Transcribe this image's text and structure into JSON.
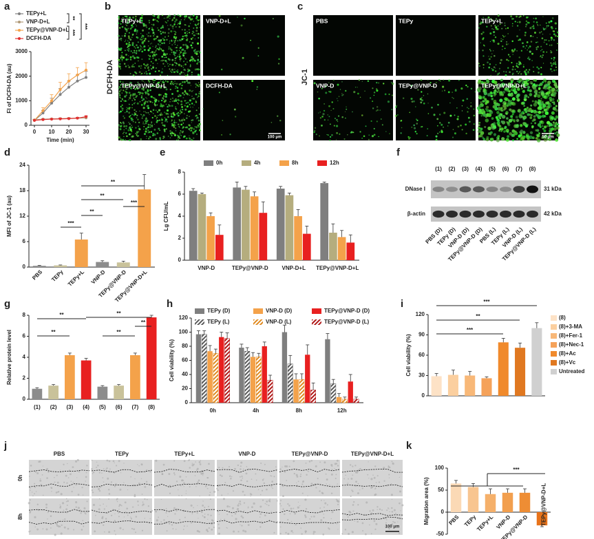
{
  "chart_data": [
    {
      "panel": "a",
      "type": "line",
      "xlabel": "Time (min)",
      "ylabel": "FI of DCFH-DA (au)",
      "x": [
        0,
        5,
        10,
        15,
        20,
        25,
        30
      ],
      "xlim": [
        -2,
        32
      ],
      "xticks": [
        0,
        10,
        20,
        30
      ],
      "ylim": [
        0,
        3000
      ],
      "yticks": [
        0,
        1000,
        2000,
        3000
      ],
      "legend": "top-left",
      "series": [
        {
          "name": "TEPy+L",
          "color": "#7f7f7f",
          "values": [
            200,
            500,
            900,
            1250,
            1550,
            1800,
            1950
          ],
          "errors": [
            30,
            100,
            200,
            250,
            250,
            250,
            250
          ]
        },
        {
          "name": "VNP-D+L",
          "color": "#b09a78",
          "values": [
            220,
            250,
            260,
            270,
            280,
            290,
            300
          ],
          "errors": [
            20,
            20,
            20,
            30,
            30,
            30,
            40
          ]
        },
        {
          "name": "TEPy@VNP-D+L",
          "color": "#f4a24a",
          "values": [
            200,
            600,
            1000,
            1450,
            1800,
            2050,
            2250
          ],
          "errors": [
            30,
            120,
            250,
            300,
            300,
            300,
            300
          ]
        },
        {
          "name": "DCFH-DA",
          "color": "#e03030",
          "values": [
            200,
            230,
            250,
            260,
            270,
            290,
            350
          ],
          "errors": [
            20,
            20,
            20,
            30,
            30,
            30,
            40
          ]
        }
      ],
      "annotations": [
        "**",
        "***",
        "***"
      ]
    },
    {
      "panel": "d",
      "type": "bar",
      "ylabel": "MFI of JC-1 (au)",
      "categories": [
        "PBS",
        "TEPy",
        "TEPy+L",
        "VNP-D",
        "TEPy@VNP-D",
        "TEPy@VNP-D+L"
      ],
      "values": [
        0.3,
        0.4,
        6.5,
        1.2,
        1.1,
        18.3
      ],
      "errors": [
        0.1,
        0.1,
        1.5,
        0.3,
        0.3,
        3.5
      ],
      "colors": [
        "#8c8c8c",
        "#c9c29a",
        "#f4a24a",
        "#8c8c8c",
        "#c9c29a",
        "#f4a24a"
      ],
      "ylim": [
        0,
        24
      ],
      "yticks": [
        0,
        6,
        12,
        18,
        24
      ],
      "annotations": [
        "**",
        "**",
        "***",
        "**",
        "***"
      ]
    },
    {
      "panel": "e",
      "type": "bar",
      "ylabel": "Lg CFU/mL",
      "categories": [
        "VNP-D",
        "TEPy@VNP-D",
        "VNP-D+L",
        "TEPy@VNP-D+L"
      ],
      "legend": "top",
      "series": [
        {
          "name": "0h",
          "color": "#7f7f7f",
          "values": [
            6.3,
            6.6,
            6.5,
            7.0
          ],
          "errors": [
            0.2,
            0.5,
            0.2,
            0.1
          ]
        },
        {
          "name": "4h",
          "color": "#b5ad7e",
          "values": [
            6.0,
            6.4,
            5.9,
            2.5
          ],
          "errors": [
            0.1,
            0.3,
            0.2,
            0.8
          ]
        },
        {
          "name": "8h",
          "color": "#f4a24a",
          "values": [
            4.0,
            5.8,
            4.0,
            2.1
          ],
          "errors": [
            0.3,
            0.4,
            0.6,
            0.6
          ]
        },
        {
          "name": "12h",
          "color": "#e82020",
          "values": [
            2.3,
            4.3,
            2.4,
            1.6
          ],
          "errors": [
            0.9,
            1.0,
            0.7,
            0.7
          ]
        }
      ],
      "ylim": [
        0,
        8
      ],
      "yticks": [
        0,
        2,
        4,
        6,
        8
      ]
    },
    {
      "panel": "g",
      "type": "bar",
      "ylabel": "Relative protein level",
      "categories": [
        "(1)",
        "(2)",
        "(3)",
        "(4)",
        "(5)",
        "(6)",
        "(7)",
        "(8)"
      ],
      "values": [
        1.0,
        1.3,
        4.2,
        3.7,
        1.2,
        1.3,
        4.2,
        7.8
      ],
      "errors": [
        0.1,
        0.1,
        0.2,
        0.2,
        0.1,
        0.1,
        0.2,
        0.2
      ],
      "colors": [
        "#8c8c8c",
        "#c9c29a",
        "#f4a24a",
        "#e82020",
        "#8c8c8c",
        "#c9c29a",
        "#f4a24a",
        "#e82020"
      ],
      "ylim": [
        0,
        8
      ],
      "yticks": [
        0,
        2,
        4,
        6,
        8
      ],
      "annotations": [
        "**",
        "**",
        "**",
        "**",
        "**"
      ]
    },
    {
      "panel": "h",
      "type": "bar",
      "ylabel": "Cell viability (%)",
      "categories": [
        "0h",
        "4h",
        "8h",
        "12h"
      ],
      "legend": "grid",
      "series": [
        {
          "name": "TEPy (D)",
          "color": "#7f7f7f",
          "hatch": false,
          "values": [
            97,
            78,
            100,
            90
          ],
          "errors": [
            5,
            5,
            10,
            8
          ]
        },
        {
          "name": "TEPy (L)",
          "color": "#5a5a5a",
          "hatch": true,
          "values": [
            97,
            73,
            55,
            27
          ],
          "errors": [
            5,
            5,
            12,
            6
          ]
        },
        {
          "name": "VNP-D (D)",
          "color": "#f4a24a",
          "hatch": false,
          "values": [
            73,
            65,
            33,
            8
          ],
          "errors": [
            8,
            6,
            8,
            5
          ]
        },
        {
          "name": "VNP-D (L)",
          "color": "#e08a20",
          "hatch": true,
          "values": [
            70,
            65,
            33,
            5
          ],
          "errors": [
            6,
            5,
            8,
            3
          ]
        },
        {
          "name": "TEPy@VNP-D (D)",
          "color": "#e82020",
          "hatch": false,
          "values": [
            93,
            80,
            68,
            30
          ],
          "errors": [
            7,
            6,
            14,
            10
          ]
        },
        {
          "name": "TEPy@VNP-D (L)",
          "color": "#b01818",
          "hatch": true,
          "values": [
            91,
            32,
            18,
            5
          ],
          "errors": [
            8,
            7,
            10,
            3
          ]
        }
      ],
      "ylim": [
        0,
        120
      ],
      "yticks": [
        0,
        20,
        40,
        60,
        80,
        100,
        120
      ]
    },
    {
      "panel": "i",
      "type": "bar",
      "ylabel": "Cell viability (%)",
      "legend": "right",
      "categories": [
        "(8)",
        "(8)+3-MA",
        "(8)+Fer-1",
        "(8)+Nec-1",
        "(8)+Ac",
        "(8)+Vc",
        "Untreated"
      ],
      "values": [
        29,
        31,
        30,
        26,
        79,
        71,
        100
      ],
      "errors": [
        4,
        7,
        6,
        2,
        6,
        7,
        8
      ],
      "colors": [
        "#fde2c6",
        "#fbcf9f",
        "#f8b878",
        "#f5a25a",
        "#f08a2c",
        "#e07820",
        "#d0d0d0"
      ],
      "ylim": [
        0,
        120
      ],
      "yticks": [
        0,
        30,
        60,
        90,
        120
      ],
      "annotations": [
        "***",
        "**",
        "***"
      ]
    },
    {
      "panel": "k",
      "type": "bar",
      "ylabel": "Migration area (%)",
      "categories": [
        "PBS",
        "TEPy",
        "TEPy+L",
        "VNP-D",
        "TEPy@VNP-D",
        "TEPy@VNP-D+L"
      ],
      "values": [
        65,
        57,
        41,
        44,
        44,
        -30
      ],
      "errors": [
        7,
        8,
        12,
        9,
        9,
        3
      ],
      "colors": [
        "#fbd9b5",
        "#f8c590",
        "#f5b06a",
        "#f29f4e",
        "#ee8d34",
        "#e8731a"
      ],
      "ylim": [
        -50,
        100
      ],
      "yticks": [
        -50,
        0,
        50,
        100
      ],
      "annotations": [
        "***"
      ]
    }
  ],
  "image_panels": [
    {
      "panel": "b",
      "side_label": "DCFH-DA",
      "tiles": [
        "TEPy+L",
        "VNP-D+L",
        "TEPy@VNP-D+L",
        "DCFH-DA"
      ],
      "scale_bar": "100 μm"
    },
    {
      "panel": "c",
      "side_label": "JC-1",
      "tiles": [
        "PBS",
        "TEPy",
        "TEPy+L",
        "VNP-D",
        "TEPy@VNP-D",
        "TEPy@VNP-D+L"
      ],
      "scale_bar": "50 μm"
    },
    {
      "panel": "f",
      "lanes": [
        "(1)",
        "(2)",
        "(3)",
        "(4)",
        "(5)",
        "(6)",
        "(7)",
        "(8)"
      ],
      "lane_colors": [
        "#7f7f7f",
        "#8a9a20",
        "#e8961a",
        "#e02020",
        "#7f7f7f",
        "#8a9a20",
        "#e8961a",
        "#e02020"
      ],
      "rows": [
        "DNase I",
        "β-actin"
      ],
      "sizes": [
        "31 kDa",
        "42 kDa"
      ],
      "lane_labels": [
        "PBS (D)",
        "TEPy (D)",
        "VNP-D (D)",
        "TEPy@VNP-D (D)",
        "PBS (L)",
        "TEPy (L)",
        "VNP-D (L)",
        "TEPy@VNP-D (L)"
      ]
    },
    {
      "panel": "j",
      "columns": [
        "PBS",
        "TEPy",
        "TEPy+L",
        "VNP-D",
        "TEPy@VNP-D",
        "TEPy@VNP-D+L"
      ],
      "rows": [
        "0h",
        "8h"
      ],
      "scale_bar": "100 μm"
    }
  ]
}
